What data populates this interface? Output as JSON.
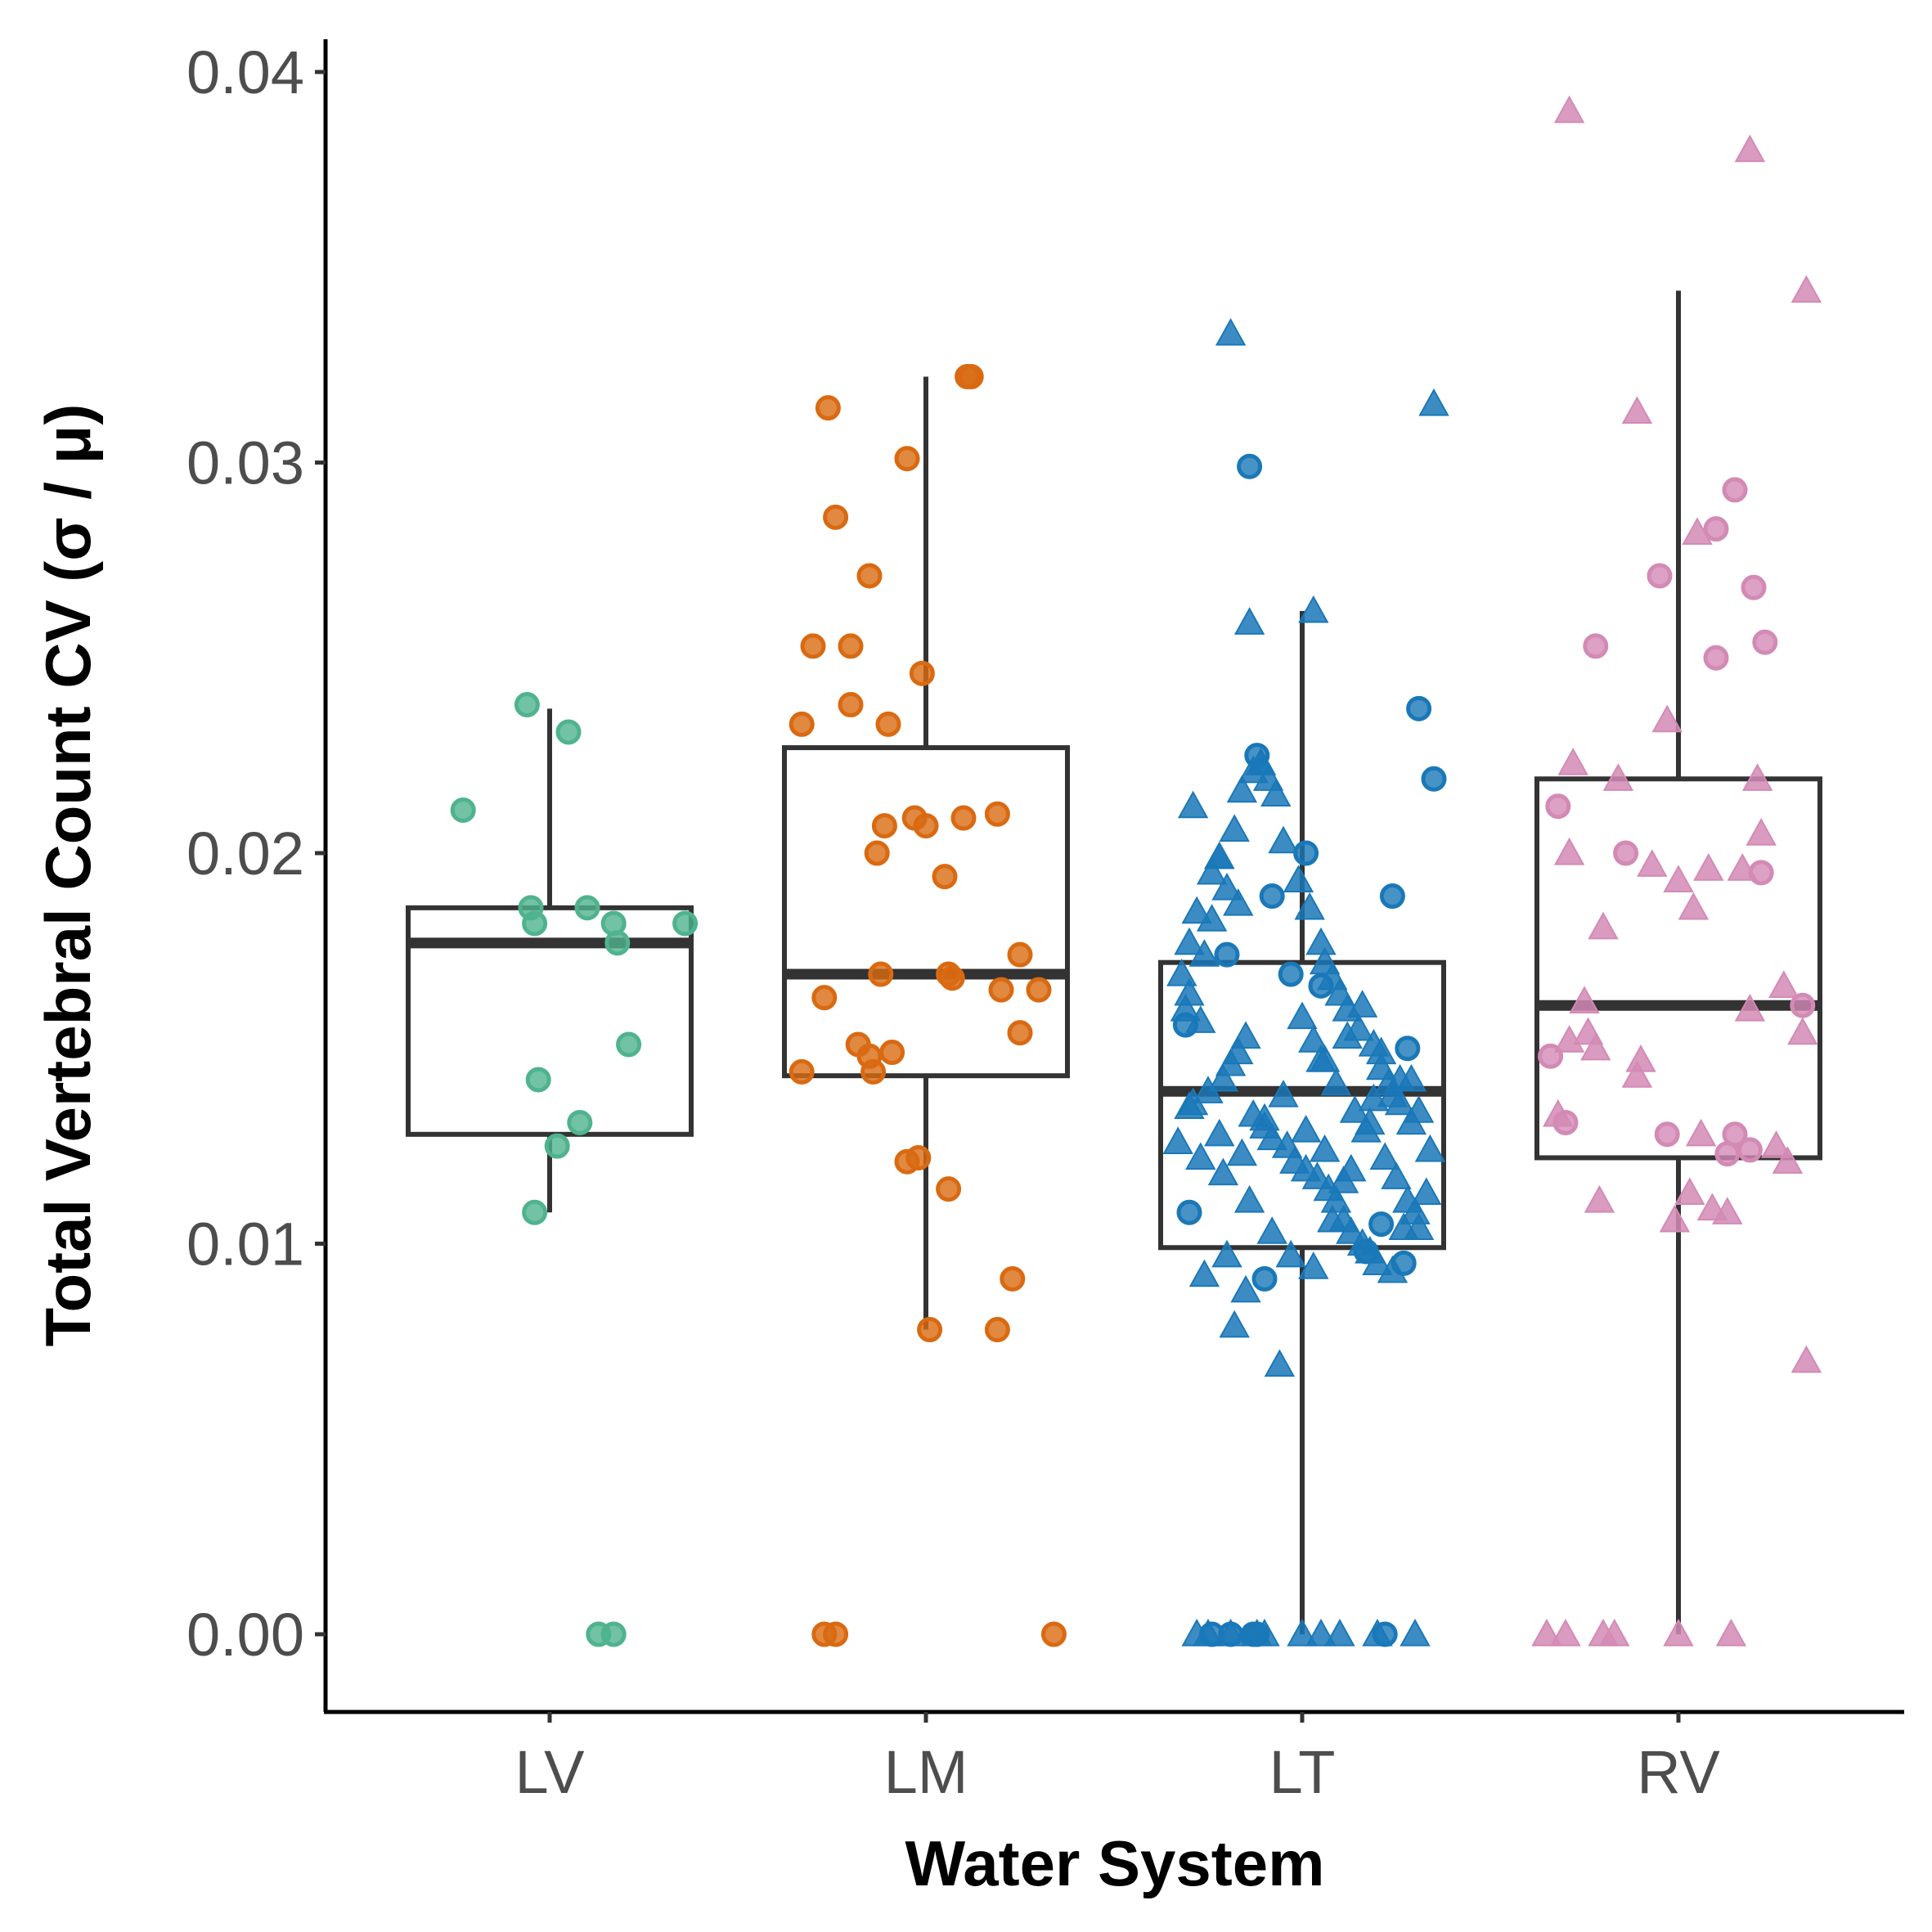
{
  "chart_data": {
    "type": "box",
    "xlabel": "Water System",
    "ylabel": "Total Vertebral Count CV (σ / μ)",
    "categories": [
      "LV",
      "LM",
      "LT",
      "RV"
    ],
    "yticks": [
      "0.00",
      "0.01",
      "0.02",
      "0.03",
      "0.04"
    ],
    "ylim": [
      -0.002,
      0.041
    ],
    "grid": false,
    "legend": "none",
    "colors": {
      "LV": "#4fb38e",
      "LM": "#d96a12",
      "LT": "#1a78b8",
      "RV": "#d38ab5"
    },
    "boxes": [
      {
        "category": "LV",
        "whisker_low": 0.0108,
        "q1": 0.0128,
        "median": 0.0177,
        "q3": 0.0186,
        "whisker_high": 0.0237
      },
      {
        "category": "LM",
        "whisker_low": 0.0078,
        "q1": 0.0143,
        "median": 0.0169,
        "q3": 0.0227,
        "whisker_high": 0.0322
      },
      {
        "category": "LT",
        "whisker_low": 0.0,
        "q1": 0.0099,
        "median": 0.0139,
        "q3": 0.0172,
        "whisker_high": 0.0262
      },
      {
        "category": "RV",
        "whisker_low": 0.0,
        "q1": 0.0122,
        "median": 0.0161,
        "q3": 0.0219,
        "whisker_high": 0.0344
      }
    ],
    "points": [
      {
        "category": "LV",
        "shape": "circle",
        "offset": [
          -0.23,
          -0.06,
          0.05,
          0.1,
          -0.05,
          -0.04,
          0.17,
          0.18,
          0.21,
          0.36,
          0.08,
          -0.03,
          0.02,
          -0.04,
          0.13,
          0.17
        ],
        "values": [
          0.0211,
          0.0238,
          0.0231,
          0.0186,
          0.0186,
          0.0182,
          0.0182,
          0.0177,
          0.0151,
          0.0182,
          0.0131,
          0.0142,
          0.0125,
          0.0108,
          0.0,
          0.0
        ]
      },
      {
        "category": "LM",
        "shape": "circle",
        "offset": [
          -0.26,
          0.11,
          0.12,
          -0.05,
          -0.24,
          -0.15,
          -0.2,
          -0.2,
          -0.01,
          -0.1,
          -0.33,
          -0.3,
          0.0,
          -0.11,
          -0.03,
          0.1,
          0.19,
          -0.13,
          0.05,
          0.3,
          0.25,
          -0.12,
          -0.27,
          0.07,
          0.06,
          0.2,
          0.25,
          -0.18,
          -0.33,
          -0.15,
          -0.09,
          -0.14,
          -0.05,
          -0.02,
          0.06,
          0.23,
          0.01,
          0.19,
          -0.27,
          -0.24,
          0.34
        ],
        "values": [
          0.0314,
          0.0322,
          0.0322,
          0.0301,
          0.0286,
          0.0271,
          0.0253,
          0.0238,
          0.0246,
          0.0233,
          0.0233,
          0.0253,
          0.0207,
          0.0207,
          0.0209,
          0.0209,
          0.021,
          0.02,
          0.0194,
          0.0165,
          0.0174,
          0.0169,
          0.0163,
          0.0168,
          0.0169,
          0.0165,
          0.0154,
          0.0151,
          0.0144,
          0.0148,
          0.0149,
          0.0144,
          0.0121,
          0.0122,
          0.0114,
          0.0091,
          0.0078,
          0.0078,
          0.0,
          0.0,
          0.0
        ]
      },
      {
        "category": "LT",
        "shape": "circle",
        "offset": [
          -0.14,
          -0.12,
          0.01,
          0.31,
          0.35,
          -0.08,
          -0.2,
          0.05,
          0.24,
          0.28,
          -0.03,
          -0.31,
          -0.1,
          -0.3,
          0.21,
          0.17,
          0.27,
          -0.12,
          -0.24,
          -0.19,
          -0.13,
          0.22
        ],
        "values": [
          0.0299,
          0.0225,
          0.02,
          0.0237,
          0.0219,
          0.0189,
          0.0174,
          0.0166,
          0.0189,
          0.015,
          0.0169,
          0.0156,
          0.0091,
          0.0108,
          0.0105,
          0.0098,
          0.0095,
          0.0,
          0.0,
          0.0,
          0.0,
          0.0
        ]
      },
      {
        "category": "LT",
        "shape": "triangle",
        "offset": [
          -0.19,
          0.35,
          0.03,
          -0.14,
          -0.11,
          -0.29,
          -0.22,
          -0.2,
          -0.17,
          -0.24,
          -0.26,
          -0.3,
          -0.31,
          -0.27,
          -0.15,
          -0.17,
          -0.19,
          -0.21,
          -0.25,
          -0.29,
          -0.13,
          -0.1,
          -0.08,
          -0.04,
          -0.02,
          0.01,
          0.04,
          0.07,
          0.09,
          0.11,
          0.13,
          0.16,
          0.18,
          0.2,
          0.24,
          0.27,
          0.3,
          0.33,
          0.34,
          0.29,
          0.26,
          0.23,
          0.21,
          0.19,
          0.15,
          0.12,
          0.1,
          0.08,
          0.06,
          0.05,
          0.02,
          -0.01,
          -0.05,
          -0.07,
          -0.09,
          -0.11,
          -0.13,
          -0.16,
          -0.18,
          -0.22,
          -0.24,
          -0.28,
          -0.3,
          -0.32,
          0.0,
          0.03,
          0.06,
          0.09,
          0.14,
          0.17,
          0.22,
          0.25,
          0.28,
          0.31,
          -0.2,
          -0.26,
          -0.15,
          -0.18,
          -0.06,
          0.05,
          0.12,
          0.19,
          -0.33,
          -0.27,
          -0.21,
          -0.14,
          -0.08,
          -0.03,
          0.03,
          0.08,
          0.13,
          0.18,
          0.24,
          0.29,
          -0.3,
          -0.22,
          -0.16,
          -0.1,
          -0.05,
          0.01,
          0.06,
          0.11,
          0.16,
          0.21,
          0.26,
          0.31,
          -0.28,
          -0.19,
          -0.12,
          0.0,
          0.1,
          0.2,
          0.3,
          -0.25,
          -0.1,
          0.05
        ],
        "values": [
          0.0333,
          0.0315,
          0.0262,
          0.0259,
          0.0223,
          0.0212,
          0.0199,
          0.0191,
          0.0187,
          0.0183,
          0.0174,
          0.0164,
          0.016,
          0.0157,
          0.0153,
          0.0149,
          0.0146,
          0.0142,
          0.0139,
          0.0136,
          0.0133,
          0.013,
          0.0127,
          0.0125,
          0.0121,
          0.0119,
          0.0117,
          0.0114,
          0.0111,
          0.0106,
          0.0103,
          0.01,
          0.0098,
          0.0095,
          0.0093,
          0.0104,
          0.0108,
          0.0113,
          0.0124,
          0.0131,
          0.0136,
          0.0141,
          0.0145,
          0.0151,
          0.0155,
          0.016,
          0.0164,
          0.0168,
          0.0172,
          0.0177,
          0.0186,
          0.0193,
          0.0203,
          0.0215,
          0.0219,
          0.0223,
          0.0221,
          0.0216,
          0.0206,
          0.0199,
          0.0195,
          0.0185,
          0.0177,
          0.0169,
          0.0158,
          0.0152,
          0.0147,
          0.0141,
          0.0134,
          0.0129,
          0.0122,
          0.0117,
          0.0111,
          0.0104,
          0.0097,
          0.0092,
          0.0088,
          0.0079,
          0.0069,
          0.0147,
          0.0153,
          0.0137,
          0.0126,
          0.0122,
          0.0118,
          0.0111,
          0.0103,
          0.0097,
          0.0094,
          0.0106,
          0.0119,
          0.0131,
          0.0138,
          0.0142,
          0.0135,
          0.0128,
          0.0123,
          0.0132,
          0.0138,
          0.0129,
          0.0124,
          0.0116,
          0.0161,
          0.0149,
          0.0142,
          0.0134,
          0.0,
          0.0,
          0.0,
          0.0,
          0.0,
          0.0,
          0.0,
          0.0,
          0.0,
          0.0
        ]
      },
      {
        "category": "RV",
        "shape": "circle",
        "offset": [
          0.15,
          -0.05,
          0.1,
          -0.22,
          0.23,
          0.2,
          0.1,
          -0.14,
          0.22,
          -0.32,
          0.33,
          -0.34,
          -0.3,
          -0.03,
          0.15,
          0.13,
          0.19
        ],
        "values": [
          0.0293,
          0.0271,
          0.025,
          0.0253,
          0.0254,
          0.0268,
          0.0283,
          0.02,
          0.0195,
          0.0212,
          0.0161,
          0.0148,
          0.0131,
          0.0128,
          0.0128,
          0.0123,
          0.0124
        ]
      },
      {
        "category": "RV",
        "shape": "triangle",
        "offset": [
          -0.29,
          0.19,
          0.34,
          -0.11,
          0.05,
          -0.03,
          -0.28,
          0.21,
          -0.16,
          -0.29,
          0.0,
          0.08,
          0.17,
          0.22,
          -0.2,
          -0.25,
          0.28,
          -0.24,
          -0.1,
          -0.29,
          0.04,
          -0.07,
          0.33,
          0.19,
          -0.22,
          -0.11,
          0.26,
          0.03,
          -0.32,
          0.06,
          0.13,
          0.29,
          -0.21,
          0.34,
          -0.01,
          0.09,
          0.0,
          -0.35,
          -0.2,
          -0.3,
          -0.17,
          0.14
        ],
        "values": [
          0.039,
          0.038,
          0.0344,
          0.0313,
          0.0282,
          0.0234,
          0.0223,
          0.0219,
          0.0219,
          0.02,
          0.0193,
          0.0196,
          0.0196,
          0.0205,
          0.0181,
          0.0162,
          0.0166,
          0.0154,
          0.0147,
          0.0152,
          0.0186,
          0.0197,
          0.0154,
          0.016,
          0.015,
          0.0143,
          0.0125,
          0.0113,
          0.0133,
          0.0128,
          0.0108,
          0.0121,
          0.0111,
          0.007,
          0.0106,
          0.0109,
          0.0,
          0.0,
          0.0,
          0.0,
          0.0,
          0.0
        ]
      }
    ]
  }
}
